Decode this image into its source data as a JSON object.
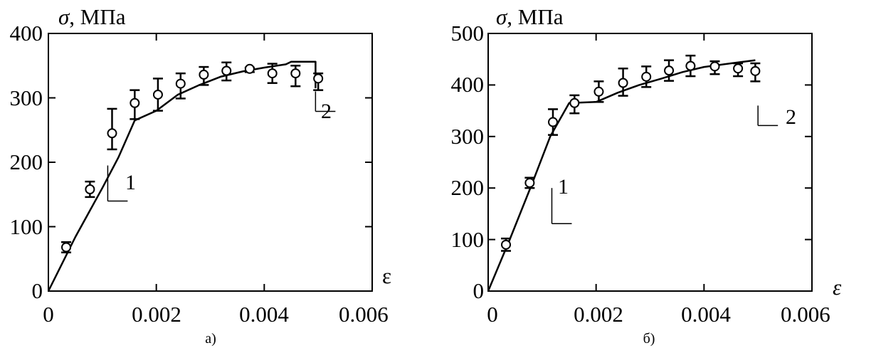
{
  "figure": {
    "panels": [
      {
        "y_title_symbol": "σ",
        "y_title_unit": ", МПа",
        "x_title": "ε",
        "x_tick_labels": [
          "0",
          "0.002",
          "0.004",
          "0.006"
        ],
        "y_tick_labels": [
          "0",
          "100",
          "200",
          "300",
          "400"
        ],
        "caption": "а)",
        "callouts": [
          "1",
          "2"
        ]
      },
      {
        "y_title_symbol": "σ",
        "y_title_unit": ", МПа",
        "x_title": "ε",
        "x_tick_labels": [
          "0",
          "0.002",
          "0.004",
          "0.006"
        ],
        "y_tick_labels": [
          "0",
          "100",
          "200",
          "300",
          "400",
          "500"
        ],
        "caption": "б)",
        "callouts": [
          "1",
          "2"
        ]
      }
    ]
  },
  "chart_data": [
    {
      "type": "line",
      "title": "",
      "xlabel": "ε",
      "ylabel": "σ, МПа",
      "xlim": [
        0,
        0.006
      ],
      "ylim": [
        0,
        400
      ],
      "xticks": [
        0,
        0.002,
        0.004,
        0.006
      ],
      "yticks": [
        0,
        100,
        200,
        300,
        400
      ],
      "grid": false,
      "series": [
        {
          "style": "solid line",
          "x": [
            0,
            0.0005,
            0.001,
            0.0013,
            0.0016,
            0.002,
            0.0024,
            0.0028,
            0.0032,
            0.0036,
            0.004,
            0.0044,
            0.0045,
            0.00495,
            0.00495
          ],
          "y": [
            0,
            84,
            160,
            208,
            265,
            280,
            305,
            320,
            333,
            341,
            347,
            352,
            356,
            356,
            315
          ]
        },
        {
          "style": "circle markers with error bars",
          "x": [
            0.00033,
            0.00077,
            0.00118,
            0.0016,
            0.00203,
            0.00245,
            0.00288,
            0.0033,
            0.00373,
            0.00415,
            0.00458,
            0.005
          ],
          "y": [
            68,
            158,
            245,
            292,
            305,
            322,
            336,
            342,
            345,
            338,
            338,
            330
          ],
          "err_low": [
            8,
            12,
            25,
            25,
            25,
            23,
            16,
            15,
            5,
            15,
            20,
            18
          ],
          "err_high": [
            8,
            12,
            38,
            20,
            25,
            16,
            12,
            13,
            2,
            15,
            12,
            8
          ]
        }
      ],
      "annotations": [
        {
          "text": "1",
          "x": 0.0011,
          "y": 195
        },
        {
          "text": "2",
          "x": 0.00495,
          "y": 310
        }
      ]
    },
    {
      "type": "line",
      "title": "",
      "xlabel": "ε",
      "ylabel": "σ, МПа",
      "xlim": [
        0,
        0.006
      ],
      "ylim": [
        0,
        500
      ],
      "xticks": [
        0,
        0.002,
        0.004,
        0.006
      ],
      "yticks": [
        0,
        100,
        200,
        300,
        400,
        500
      ],
      "grid": false,
      "series": [
        {
          "style": "solid line",
          "x": [
            0,
            0.0004,
            0.0008,
            0.00115,
            0.0015,
            0.002,
            0.0024,
            0.0028,
            0.0032,
            0.0036,
            0.004,
            0.0045,
            0.00495
          ],
          "y": [
            0,
            100,
            205,
            300,
            365,
            367,
            385,
            400,
            412,
            425,
            435,
            442,
            448
          ]
        },
        {
          "style": "circle markers with error bars",
          "x": [
            0.00033,
            0.00077,
            0.0012,
            0.0016,
            0.00205,
            0.0025,
            0.00293,
            0.00335,
            0.00375,
            0.0042,
            0.00463,
            0.00495
          ],
          "y": [
            90,
            210,
            328,
            365,
            387,
            404,
            416,
            428,
            437,
            436,
            432,
            427
          ],
          "err_low": [
            12,
            10,
            25,
            20,
            20,
            25,
            20,
            20,
            20,
            15,
            15,
            20
          ],
          "err_high": [
            12,
            10,
            25,
            15,
            20,
            28,
            20,
            20,
            20,
            10,
            10,
            15
          ]
        }
      ],
      "annotations": [
        {
          "text": "1",
          "x": 0.00118,
          "y": 200
        },
        {
          "text": "2",
          "x": 0.005,
          "y": 360
        }
      ]
    }
  ]
}
